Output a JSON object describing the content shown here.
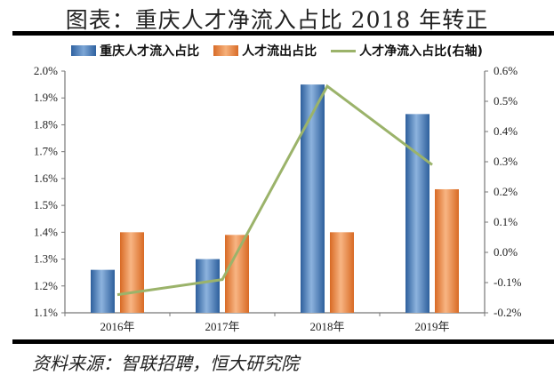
{
  "title": "图表：重庆人才净流入占比 2018 年转正",
  "legend": [
    {
      "label": "重庆人才流入占比",
      "color": "#3a72b0",
      "type": "bar"
    },
    {
      "label": "人才流出占比",
      "color": "#e8833f",
      "type": "bar"
    },
    {
      "label": "人才净流入占比(右轴)",
      "color": "#9bb36a",
      "type": "line"
    }
  ],
  "source": "资料来源：智联招聘，恒大研究院",
  "chart_data": {
    "type": "bar",
    "title": "图表：重庆人才净流入占比 2018 年转正",
    "categories": [
      "2016年",
      "2017年",
      "2018年",
      "2019年"
    ],
    "series": [
      {
        "name": "重庆人才流入占比",
        "type": "bar",
        "axis": "left",
        "unit": "%",
        "values": [
          1.26,
          1.3,
          1.95,
          1.84
        ]
      },
      {
        "name": "人才流出占比",
        "type": "bar",
        "axis": "left",
        "unit": "%",
        "values": [
          1.4,
          1.39,
          1.4,
          1.56
        ]
      },
      {
        "name": "人才净流入占比(右轴)",
        "type": "line",
        "axis": "right",
        "unit": "%",
        "values": [
          -0.14,
          -0.09,
          0.55,
          0.29
        ]
      }
    ],
    "left_axis": {
      "min": 1.1,
      "max": 2.0,
      "step": 0.1,
      "ticks": [
        "2.0%",
        "1.9%",
        "1.8%",
        "1.7%",
        "1.6%",
        "1.5%",
        "1.4%",
        "1.3%",
        "1.2%",
        "1.1%"
      ]
    },
    "right_axis": {
      "min": -0.2,
      "max": 0.6,
      "step": 0.1,
      "ticks": [
        "0.6%",
        "0.5%",
        "0.4%",
        "0.3%",
        "0.2%",
        "0.1%",
        "0.0%",
        "-0.1%",
        "-0.2%"
      ]
    },
    "xlabel": "",
    "ylabel": "",
    "grid": false,
    "legend_position": "top"
  }
}
